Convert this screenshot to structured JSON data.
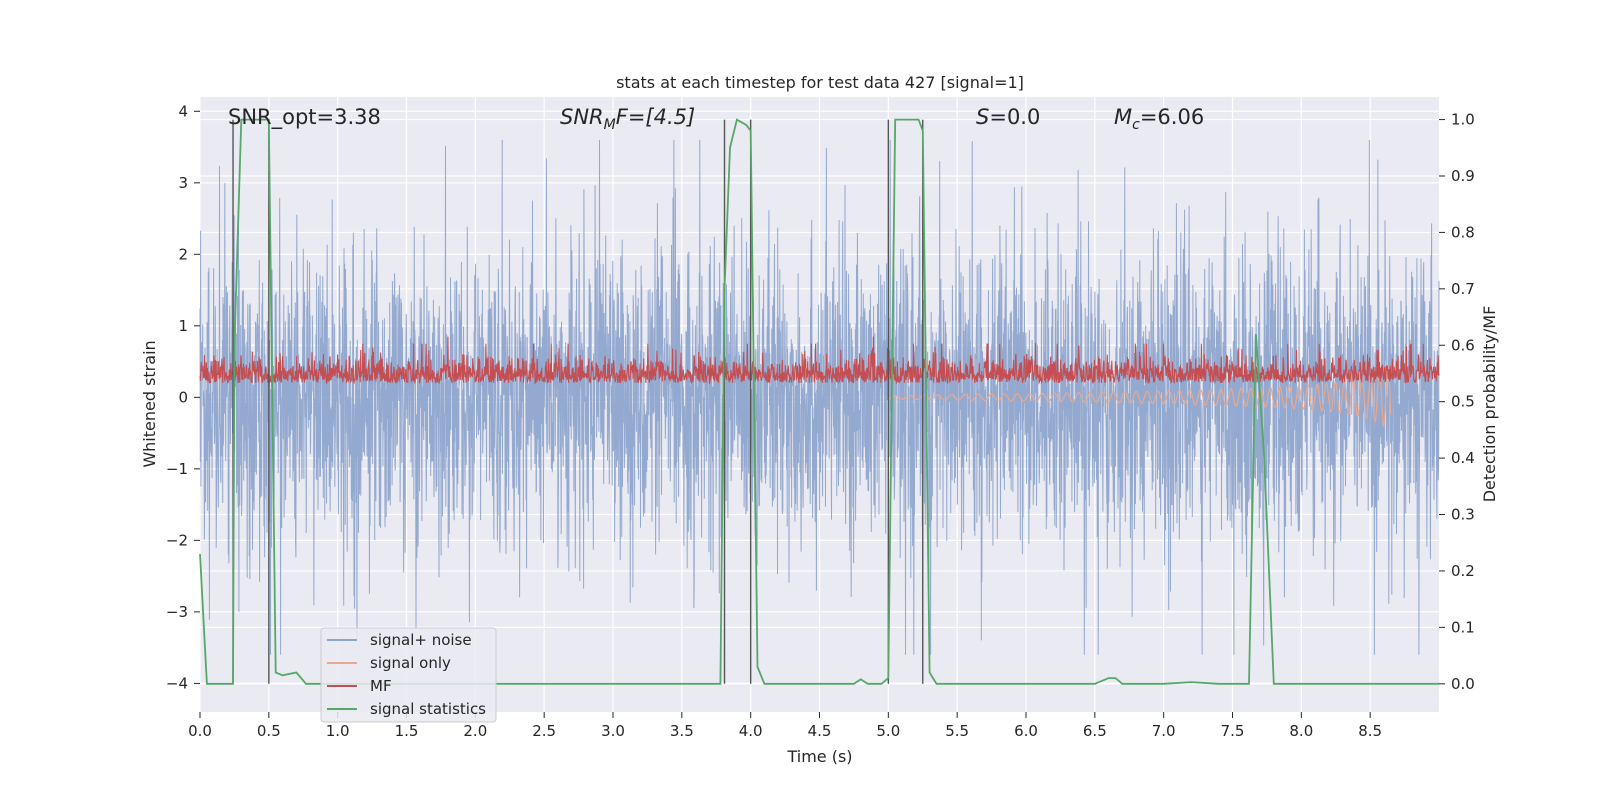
{
  "chart_data": {
    "type": "line",
    "title": "stats at each timestep for test data 427 [signal=1]",
    "xlabel": "Time (s)",
    "ylabel": "Whitened strain",
    "ylabel_right": "Detection probability/MF",
    "xlim": [
      0,
      9.0
    ],
    "ylim": [
      -4.4,
      4.2
    ],
    "ylim_right": [
      -0.05,
      1.04
    ],
    "x_ticks": [
      "0.0",
      "0.5",
      "1.0",
      "1.5",
      "2.0",
      "2.5",
      "3.0",
      "3.5",
      "4.0",
      "4.5",
      "5.0",
      "5.5",
      "6.0",
      "6.5",
      "7.0",
      "7.5",
      "8.0",
      "8.5"
    ],
    "y_ticks": [
      "−4",
      "−3",
      "−2",
      "−1",
      "0",
      "1",
      "2",
      "3",
      "4"
    ],
    "y_ticks_right": [
      "0.0",
      "0.1",
      "0.2",
      "0.3",
      "0.4",
      "0.5",
      "0.6",
      "0.7",
      "0.8",
      "0.9",
      "1.0"
    ],
    "annotations": {
      "snr_opt": "SNR_opt=3.38",
      "snr_mf_main": "SNR",
      "snr_mf_sub": "M",
      "snr_mf_rest": "F=[4.5]",
      "s_var": "S",
      "s_rest": "=0.0",
      "mc_main": "M",
      "mc_sub": "c",
      "mc_rest": "=6.06"
    },
    "legend": {
      "position": "lower-left",
      "entries": [
        "signal+ noise",
        "signal only",
        "MF",
        "signal statistics"
      ]
    },
    "vertical_markers_x": [
      0.24,
      0.5,
      3.81,
      4.0,
      5.0,
      5.25
    ],
    "series": [
      {
        "name": "signal+ noise",
        "color": "#8fa5cc",
        "axis": "left",
        "envelope": "noisy band, typical amplitude about ±1.2, peaks to about ±3.5"
      },
      {
        "name": "signal only",
        "color": "#e8a890",
        "axis": "left",
        "x": [
          5.0,
          5.5,
          6.0,
          6.5,
          7.0,
          7.5,
          8.0,
          8.3,
          8.5,
          8.65
        ],
        "amplitude": [
          0.02,
          0.04,
          0.05,
          0.07,
          0.09,
          0.12,
          0.16,
          0.22,
          0.3,
          0.45
        ]
      },
      {
        "name": "MF",
        "color": "#c44e52",
        "axis": "left",
        "baseline": 0.3,
        "peaks_to": 0.85
      },
      {
        "name": "signal statistics",
        "color": "#55a868",
        "axis": "right",
        "x": [
          0.0,
          0.05,
          0.24,
          0.25,
          0.3,
          0.5,
          0.55,
          0.6,
          0.7,
          0.77,
          0.8,
          1.0,
          2.0,
          3.0,
          3.5,
          3.78,
          3.81,
          3.85,
          3.9,
          3.97,
          4.0,
          4.05,
          4.1,
          4.2,
          4.5,
          4.75,
          4.8,
          4.85,
          4.9,
          4.95,
          5.0,
          5.05,
          5.22,
          5.25,
          5.3,
          5.35,
          5.5,
          6.0,
          6.5,
          6.6,
          6.65,
          6.7,
          7.0,
          7.2,
          7.4,
          7.5,
          7.62,
          7.67,
          7.73,
          7.8,
          8.0,
          8.5,
          9.0
        ],
        "y": [
          0.23,
          0.0,
          0.0,
          0.6,
          1.0,
          1.0,
          0.02,
          0.015,
          0.02,
          0.0,
          0.0,
          0.0,
          0.0,
          0.0,
          0.0,
          0.0,
          0.7,
          0.95,
          1.0,
          0.99,
          0.98,
          0.03,
          0.0,
          0.0,
          0.0,
          0.0,
          0.008,
          0.0,
          0.0,
          0.0,
          0.01,
          1.0,
          1.0,
          0.98,
          0.02,
          0.0,
          0.0,
          0.0,
          0.0,
          0.01,
          0.01,
          0.0,
          0.0,
          0.003,
          0.0,
          0.0,
          0.0,
          0.62,
          0.4,
          0.0,
          0.0,
          0.0,
          0.0
        ]
      }
    ]
  }
}
